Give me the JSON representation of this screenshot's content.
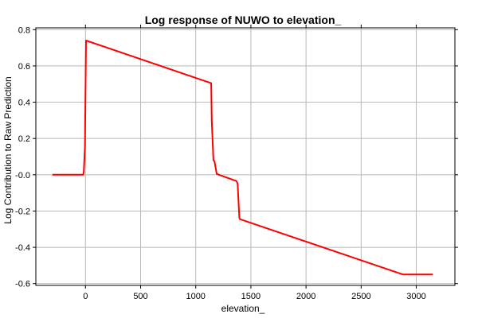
{
  "chart_data": {
    "type": "line",
    "title": "Log response of NUWO to elevation_",
    "xlabel": "elevation_",
    "ylabel": "Log Contribution to Raw Prediction",
    "xlim": [
      -450,
      3350
    ],
    "ylim": [
      -0.61,
      0.81
    ],
    "x_ticks": [
      0,
      500,
      1000,
      1500,
      2000,
      2500,
      3000
    ],
    "x_tick_labels": [
      "0",
      "500",
      "1000",
      "1500",
      "2000",
      "2500",
      "3000"
    ],
    "y_ticks": [
      0.8,
      0.6,
      0.4,
      0.2,
      0.0,
      -0.2,
      -0.4,
      -0.6
    ],
    "y_tick_labels": [
      "0.8",
      "0.6",
      "0.4",
      "0.2",
      "-0.0",
      "-0.2",
      "-0.4",
      "-0.6"
    ],
    "grid": true,
    "series_color": "#ff0000",
    "series": [
      {
        "x": [
          -300,
          -20,
          -15,
          -5,
          0,
          5,
          1140,
          1145,
          1160,
          1170,
          1190,
          1210,
          1370,
          1380,
          1395,
          1400,
          2880,
          3150
        ],
        "y": [
          0.0,
          0.0,
          0.02,
          0.15,
          0.45,
          0.74,
          0.505,
          0.3,
          0.08,
          0.075,
          0.005,
          0.0,
          -0.035,
          -0.05,
          -0.235,
          -0.245,
          -0.55,
          -0.55
        ]
      }
    ]
  }
}
